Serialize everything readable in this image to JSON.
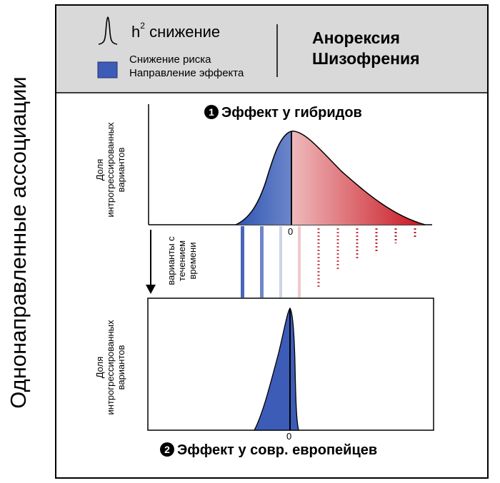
{
  "side_title": "Однонаправленные ассоциации",
  "legend": {
    "h2_symbol": "h",
    "h2_superscript": "2",
    "h2_label": "снижение",
    "risk_label": "Снижение риска",
    "direction_label": "Направление эффекта",
    "blue_color": "#3d5cb8"
  },
  "traits": {
    "line1": "Анорексия",
    "line2": "Шизофрения"
  },
  "top_panel": {
    "number": "1",
    "title": "Эффект у гибридов",
    "ylabel_lines": [
      "Доля",
      "интрогрессированных",
      "вариантов"
    ],
    "zero_label": "0"
  },
  "middle": {
    "lines": [
      "варианты с",
      "течением",
      "времени"
    ]
  },
  "bottom_panel": {
    "number": "2",
    "title": "Эффект у совр. европейцев",
    "ylabel_lines": [
      "Доля",
      "интрогрессированных",
      "вариантов"
    ],
    "zero_label": "0"
  },
  "colors": {
    "header_bg": "#d9d9d9",
    "red": "#d11f2a",
    "blue": "#3d5cb8"
  }
}
